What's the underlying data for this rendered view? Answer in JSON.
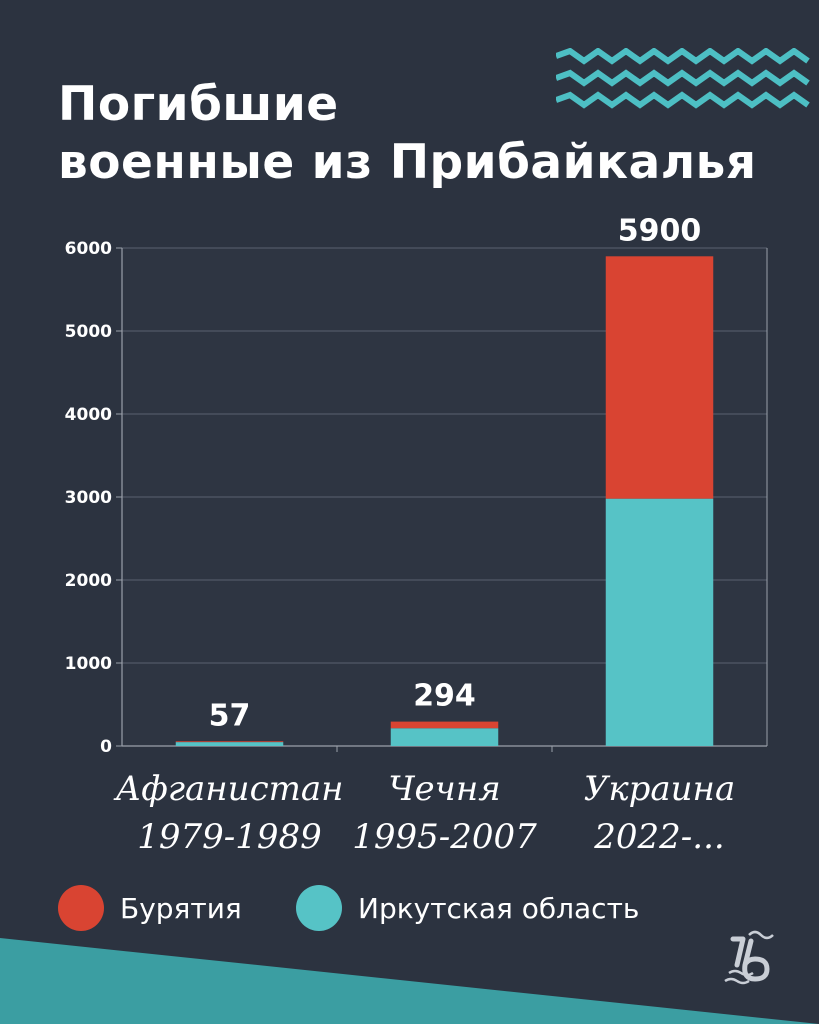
{
  "title_lines": [
    "Погибшие",
    "военные из Прибайкалья"
  ],
  "colors": {
    "background": "#2c3340",
    "plot_background": "#2e3542",
    "buryatia": "#d94432",
    "irkutsk": "#56c3c6",
    "band": "#3b9ea2",
    "waves": "#4dbfc4"
  },
  "icons": {
    "decoration": "wave-lines-icon",
    "logo": "lb-logo-icon"
  },
  "chart_data": {
    "type": "bar",
    "stacked": true,
    "title": "",
    "xlabel": "",
    "ylabel": "",
    "categories": [
      [
        "Афганистан",
        "1979-1989"
      ],
      [
        "Чечня",
        "1995-2007"
      ],
      [
        "Украина",
        "2022-..."
      ]
    ],
    "series": [
      {
        "name": "Иркутская область",
        "color": "#56c3c6",
        "values": [
          47,
          214,
          2980
        ]
      },
      {
        "name": "Бурятия",
        "color": "#d94432",
        "values": [
          10,
          80,
          2920
        ]
      }
    ],
    "totals": [
      57,
      294,
      5900
    ],
    "total_labels": [
      "57",
      "294",
      "5900"
    ],
    "ylim": [
      0,
      6000
    ],
    "yticks": [
      0,
      1000,
      2000,
      3000,
      4000,
      5000,
      6000
    ],
    "ytick_labels": [
      "0",
      "1000",
      "2000",
      "3000",
      "4000",
      "5000",
      "6000"
    ],
    "grid": true
  },
  "legend": [
    {
      "label": "Бурятия",
      "color": "#d94432"
    },
    {
      "label": "Иркутская область",
      "color": "#56c3c6"
    }
  ]
}
